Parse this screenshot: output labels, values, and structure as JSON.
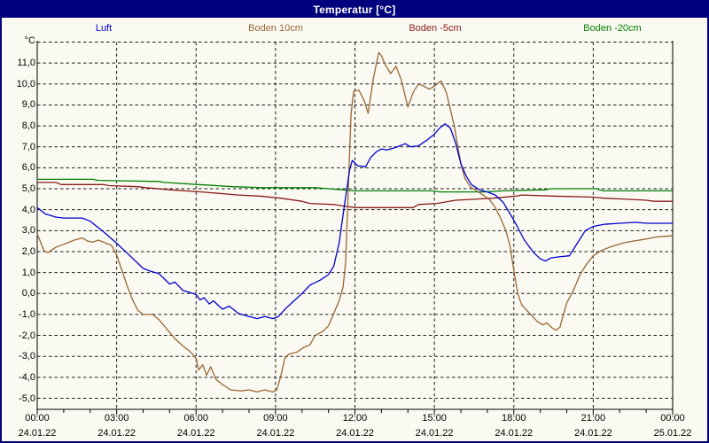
{
  "window": {
    "title": "Temperatur [°C]"
  },
  "colors": {
    "title_bar_bg": "#00007d",
    "title_text": "#ffffff",
    "window_border": "#00007d",
    "background": "#fafaf2",
    "grid": "#1a1a1a",
    "axis": "#000000",
    "luft": "#0000cd",
    "boden10": "#996633",
    "boden_m5": "#8b1a1a",
    "boden_m20": "#008000"
  },
  "legend": {
    "items": [
      {
        "label": "Luft",
        "color": "#0000cd"
      },
      {
        "label": "Boden 10cm",
        "color": "#996633"
      },
      {
        "label": "Boden -5cm",
        "color": "#8b1a1a"
      },
      {
        "label": "Boden -20cm",
        "color": "#008000"
      }
    ]
  },
  "y_axis": {
    "unit_label": "°C",
    "ticks": [
      {
        "label": "11,0",
        "value": 11
      },
      {
        "label": "10,0",
        "value": 10
      },
      {
        "label": "9,0",
        "value": 9
      },
      {
        "label": "8,0",
        "value": 8
      },
      {
        "label": "7,0",
        "value": 7
      },
      {
        "label": "6,0",
        "value": 6
      },
      {
        "label": "5,0",
        "value": 5
      },
      {
        "label": "4,0",
        "value": 4
      },
      {
        "label": "3,0",
        "value": 3
      },
      {
        "label": "2,0",
        "value": 2
      },
      {
        "label": "1,0",
        "value": 1
      },
      {
        "label": "0,0",
        "value": 0
      },
      {
        "label": "-1,0",
        "value": -1
      },
      {
        "label": "-2,0",
        "value": -2
      },
      {
        "label": "-3,0",
        "value": -3
      },
      {
        "label": "-4,0",
        "value": -4
      },
      {
        "label": "-5,0",
        "value": -5
      }
    ]
  },
  "x_axis": {
    "ticks": [
      {
        "time": "00:00",
        "date": "24.01.22",
        "hour": 0
      },
      {
        "time": "03:00",
        "date": "24.01.22",
        "hour": 3
      },
      {
        "time": "06:00",
        "date": "24.01.22",
        "hour": 6
      },
      {
        "time": "09:00",
        "date": "24.01.22",
        "hour": 9
      },
      {
        "time": "12:00",
        "date": "24.01.22",
        "hour": 12
      },
      {
        "time": "15:00",
        "date": "24.01.22",
        "hour": 15
      },
      {
        "time": "18:00",
        "date": "24.01.22",
        "hour": 18
      },
      {
        "time": "21:00",
        "date": "24.01.22",
        "hour": 21
      },
      {
        "time": "00:00",
        "date": "25.01.22",
        "hour": 24
      }
    ]
  },
  "chart_data": {
    "type": "line",
    "title": "Temperatur [°C]",
    "xlabel": "",
    "ylabel": "°C",
    "x_unit": "hours",
    "x_range": [
      0,
      24
    ],
    "y_range": [
      -5,
      12
    ],
    "y_gridline_step": 1,
    "x_gridline_step_hours": 3,
    "x_minor_tick_hours": 1,
    "grid": "dashed",
    "legend_position": "top",
    "series": [
      {
        "name": "Boden -20cm",
        "color": "#008000",
        "points": [
          [
            0,
            5.45
          ],
          [
            2.1,
            5.45
          ],
          [
            2.3,
            5.4
          ],
          [
            4.6,
            5.35
          ],
          [
            4.8,
            5.3
          ],
          [
            6.1,
            5.2
          ],
          [
            7.4,
            5.1
          ],
          [
            8.5,
            5.05
          ],
          [
            10.5,
            5.05
          ],
          [
            11,
            5.0
          ],
          [
            11.5,
            4.95
          ],
          [
            12,
            4.9
          ],
          [
            14.9,
            4.9
          ],
          [
            15.2,
            4.85
          ],
          [
            16.9,
            4.85
          ],
          [
            17.6,
            4.9
          ],
          [
            19.2,
            4.95
          ],
          [
            19.4,
            5.0
          ],
          [
            21.1,
            5.0
          ],
          [
            21.4,
            4.9
          ],
          [
            24,
            4.9
          ]
        ]
      },
      {
        "name": "Boden -5cm",
        "color": "#8b1a1a",
        "points": [
          [
            0,
            5.3
          ],
          [
            0.7,
            5.3
          ],
          [
            0.9,
            5.2
          ],
          [
            2.5,
            5.2
          ],
          [
            2.7,
            5.15
          ],
          [
            3.8,
            5.1
          ],
          [
            4.1,
            5.05
          ],
          [
            5,
            4.95
          ],
          [
            6.2,
            4.85
          ],
          [
            7.6,
            4.7
          ],
          [
            8.4,
            4.65
          ],
          [
            9.2,
            4.55
          ],
          [
            10,
            4.4
          ],
          [
            10.3,
            4.3
          ],
          [
            11.2,
            4.25
          ],
          [
            11.7,
            4.15
          ],
          [
            12,
            4.1
          ],
          [
            14.2,
            4.1
          ],
          [
            14.4,
            4.25
          ],
          [
            15.1,
            4.3
          ],
          [
            15.8,
            4.45
          ],
          [
            16.5,
            4.5
          ],
          [
            17.2,
            4.55
          ],
          [
            18.1,
            4.65
          ],
          [
            18.3,
            4.7
          ],
          [
            19.5,
            4.65
          ],
          [
            21,
            4.6
          ],
          [
            21.4,
            4.55
          ],
          [
            22.3,
            4.5
          ],
          [
            23,
            4.45
          ],
          [
            23.3,
            4.4
          ],
          [
            24,
            4.4
          ]
        ]
      },
      {
        "name": "Boden 10cm",
        "color": "#996633",
        "points": [
          [
            0,
            2.85
          ],
          [
            0.25,
            2.05
          ],
          [
            0.4,
            1.95
          ],
          [
            0.7,
            2.2
          ],
          [
            1,
            2.35
          ],
          [
            1.4,
            2.55
          ],
          [
            1.7,
            2.65
          ],
          [
            1.9,
            2.5
          ],
          [
            2.1,
            2.45
          ],
          [
            2.3,
            2.55
          ],
          [
            2.6,
            2.4
          ],
          [
            2.8,
            2.3
          ],
          [
            3,
            1.85
          ],
          [
            3.2,
            1.1
          ],
          [
            3.4,
            0.35
          ],
          [
            3.6,
            -0.3
          ],
          [
            3.8,
            -0.8
          ],
          [
            4,
            -1.0
          ],
          [
            4.35,
            -1.0
          ],
          [
            4.6,
            -1.25
          ],
          [
            4.9,
            -1.7
          ],
          [
            5.2,
            -2.15
          ],
          [
            5.5,
            -2.5
          ],
          [
            5.8,
            -2.8
          ],
          [
            6,
            -3.1
          ],
          [
            6.1,
            -3.65
          ],
          [
            6.25,
            -3.4
          ],
          [
            6.4,
            -3.9
          ],
          [
            6.55,
            -3.5
          ],
          [
            6.75,
            -4.1
          ],
          [
            7,
            -4.35
          ],
          [
            7.3,
            -4.6
          ],
          [
            7.7,
            -4.65
          ],
          [
            8,
            -4.6
          ],
          [
            8.3,
            -4.7
          ],
          [
            8.6,
            -4.6
          ],
          [
            8.9,
            -4.7
          ],
          [
            9.05,
            -4.6
          ],
          [
            9.2,
            -3.95
          ],
          [
            9.35,
            -3.1
          ],
          [
            9.5,
            -2.9
          ],
          [
            9.8,
            -2.8
          ],
          [
            10.1,
            -2.55
          ],
          [
            10.3,
            -2.45
          ],
          [
            10.5,
            -2.0
          ],
          [
            10.8,
            -1.8
          ],
          [
            11,
            -1.55
          ],
          [
            11.2,
            -0.95
          ],
          [
            11.4,
            -0.35
          ],
          [
            11.55,
            0.3
          ],
          [
            11.65,
            1.5
          ],
          [
            11.75,
            5.0
          ],
          [
            11.85,
            8.5
          ],
          [
            11.95,
            9.65
          ],
          [
            12.15,
            9.7
          ],
          [
            12.35,
            9.2
          ],
          [
            12.5,
            8.6
          ],
          [
            12.7,
            10.3
          ],
          [
            12.9,
            11.5
          ],
          [
            13,
            11.35
          ],
          [
            13.15,
            10.9
          ],
          [
            13.35,
            10.5
          ],
          [
            13.55,
            10.85
          ],
          [
            13.75,
            10.2
          ],
          [
            13.9,
            9.4
          ],
          [
            14,
            8.9
          ],
          [
            14.2,
            9.6
          ],
          [
            14.4,
            10.0
          ],
          [
            14.6,
            9.9
          ],
          [
            14.8,
            9.75
          ],
          [
            15,
            9.9
          ],
          [
            15.25,
            10.15
          ],
          [
            15.45,
            9.6
          ],
          [
            15.6,
            8.8
          ],
          [
            15.75,
            8.0
          ],
          [
            16,
            6.2
          ],
          [
            16.15,
            5.5
          ],
          [
            16.35,
            5.1
          ],
          [
            16.6,
            4.9
          ],
          [
            16.9,
            4.65
          ],
          [
            17.1,
            4.45
          ],
          [
            17.3,
            4.1
          ],
          [
            17.5,
            3.6
          ],
          [
            17.7,
            3.0
          ],
          [
            17.85,
            2.3
          ],
          [
            18,
            1.1
          ],
          [
            18.15,
            0.0
          ],
          [
            18.3,
            -0.55
          ],
          [
            18.6,
            -0.95
          ],
          [
            18.9,
            -1.35
          ],
          [
            19.1,
            -1.5
          ],
          [
            19.25,
            -1.4
          ],
          [
            19.45,
            -1.65
          ],
          [
            19.6,
            -1.75
          ],
          [
            19.75,
            -1.6
          ],
          [
            19.85,
            -1.1
          ],
          [
            20,
            -0.45
          ],
          [
            20.25,
            0.15
          ],
          [
            20.5,
            0.9
          ],
          [
            20.75,
            1.4
          ],
          [
            21,
            1.8
          ],
          [
            21.3,
            2.05
          ],
          [
            21.7,
            2.25
          ],
          [
            22.1,
            2.4
          ],
          [
            22.5,
            2.5
          ],
          [
            23,
            2.6
          ],
          [
            23.4,
            2.7
          ],
          [
            24,
            2.75
          ]
        ]
      },
      {
        "name": "Luft",
        "color": "#0000cd",
        "points": [
          [
            0,
            4.1
          ],
          [
            0.3,
            3.8
          ],
          [
            0.7,
            3.65
          ],
          [
            1,
            3.6
          ],
          [
            1.7,
            3.6
          ],
          [
            2,
            3.45
          ],
          [
            2.5,
            2.95
          ],
          [
            3,
            2.4
          ],
          [
            3.5,
            1.8
          ],
          [
            4,
            1.2
          ],
          [
            4.3,
            1.05
          ],
          [
            4.6,
            0.95
          ],
          [
            5,
            0.45
          ],
          [
            5.2,
            0.55
          ],
          [
            5.5,
            0.15
          ],
          [
            6,
            -0.05
          ],
          [
            6.15,
            -0.3
          ],
          [
            6.3,
            -0.2
          ],
          [
            6.5,
            -0.5
          ],
          [
            6.65,
            -0.35
          ],
          [
            7,
            -0.75
          ],
          [
            7.25,
            -0.6
          ],
          [
            7.6,
            -0.95
          ],
          [
            8,
            -1.1
          ],
          [
            8.3,
            -1.2
          ],
          [
            8.6,
            -1.1
          ],
          [
            8.9,
            -1.2
          ],
          [
            9.1,
            -1.1
          ],
          [
            9.4,
            -0.7
          ],
          [
            9.7,
            -0.35
          ],
          [
            10,
            0.0
          ],
          [
            10.3,
            0.4
          ],
          [
            10.7,
            0.65
          ],
          [
            11,
            0.9
          ],
          [
            11.2,
            1.3
          ],
          [
            11.4,
            2.4
          ],
          [
            11.6,
            4.2
          ],
          [
            11.8,
            5.9
          ],
          [
            11.9,
            6.35
          ],
          [
            12.1,
            6.1
          ],
          [
            12.4,
            6.05
          ],
          [
            12.6,
            6.5
          ],
          [
            12.8,
            6.75
          ],
          [
            13,
            6.9
          ],
          [
            13.2,
            6.85
          ],
          [
            13.5,
            6.95
          ],
          [
            13.9,
            7.15
          ],
          [
            14.1,
            7.0
          ],
          [
            14.4,
            7.05
          ],
          [
            14.7,
            7.3
          ],
          [
            15,
            7.6
          ],
          [
            15.2,
            7.9
          ],
          [
            15.4,
            8.1
          ],
          [
            15.6,
            7.9
          ],
          [
            15.8,
            7.2
          ],
          [
            16,
            6.2
          ],
          [
            16.2,
            5.6
          ],
          [
            16.4,
            5.2
          ],
          [
            16.7,
            4.95
          ],
          [
            17,
            4.85
          ],
          [
            17.3,
            4.7
          ],
          [
            17.6,
            4.35
          ],
          [
            18,
            3.5
          ],
          [
            18.4,
            2.55
          ],
          [
            18.75,
            1.95
          ],
          [
            19,
            1.65
          ],
          [
            19.2,
            1.55
          ],
          [
            19.4,
            1.7
          ],
          [
            19.7,
            1.75
          ],
          [
            20.1,
            1.8
          ],
          [
            20.4,
            2.4
          ],
          [
            20.7,
            3.0
          ],
          [
            21,
            3.2
          ],
          [
            21.4,
            3.3
          ],
          [
            22,
            3.35
          ],
          [
            22.6,
            3.4
          ],
          [
            23,
            3.35
          ],
          [
            24,
            3.35
          ]
        ]
      }
    ]
  }
}
